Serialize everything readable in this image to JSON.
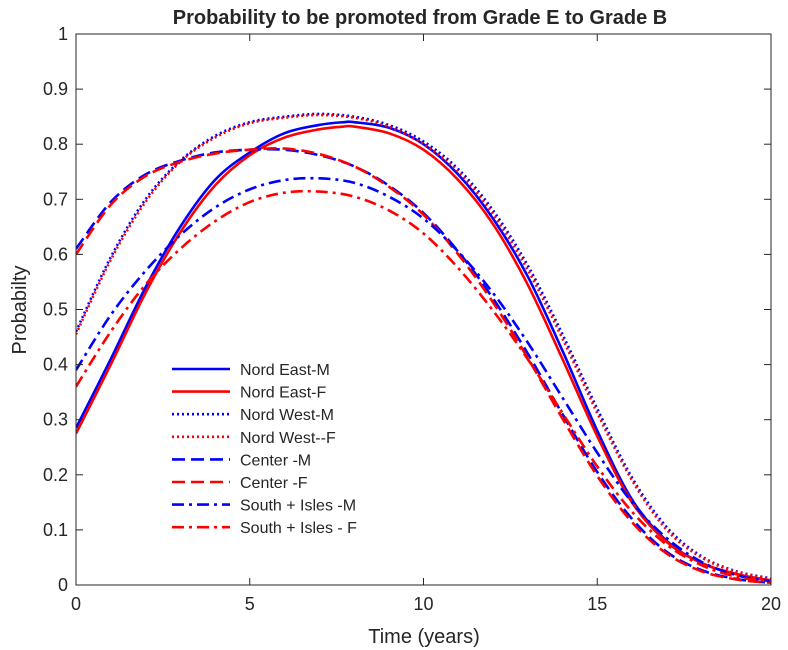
{
  "chart_data": {
    "type": "line",
    "title": "Probability to be promoted from Grade E to Grade B",
    "xlabel": "Time (years)",
    "ylabel": "Probabilty",
    "xlim": [
      0,
      20
    ],
    "ylim": [
      0,
      1
    ],
    "xticks": [
      0,
      5,
      10,
      15,
      20
    ],
    "yticks": [
      0,
      0.1,
      0.2,
      0.3,
      0.4,
      0.5,
      0.6,
      0.7,
      0.8,
      0.9,
      1
    ],
    "ytick_labels": [
      "0",
      "0.1",
      "0.2",
      "0.3",
      "0.4",
      "0.5",
      "0.6",
      "0.7",
      "0.8",
      "0.9",
      "1"
    ],
    "grid": false,
    "legend_position": "bottom-left",
    "series": [
      {
        "name": "Nord East-M",
        "color": "#0000ff",
        "style": "solid",
        "x": [
          0,
          1,
          2,
          3,
          4,
          5,
          6,
          7,
          7.7,
          8,
          9,
          10,
          11,
          12,
          13,
          14,
          15,
          16,
          17,
          18,
          19,
          20
        ],
        "y": [
          0.285,
          0.41,
          0.54,
          0.65,
          0.735,
          0.785,
          0.82,
          0.835,
          0.84,
          0.84,
          0.83,
          0.8,
          0.745,
          0.665,
          0.56,
          0.425,
          0.28,
          0.155,
          0.08,
          0.04,
          0.02,
          0.008
        ]
      },
      {
        "name": "Nord East-F",
        "color": "#ff0000",
        "style": "solid",
        "x": [
          0,
          1,
          2,
          3,
          4,
          5,
          6,
          7,
          7.7,
          8,
          9,
          10,
          11,
          12,
          13,
          14,
          15,
          16,
          17,
          18,
          19,
          20
        ],
        "y": [
          0.275,
          0.4,
          0.53,
          0.64,
          0.725,
          0.78,
          0.812,
          0.827,
          0.832,
          0.832,
          0.82,
          0.79,
          0.735,
          0.655,
          0.545,
          0.41,
          0.27,
          0.15,
          0.078,
          0.04,
          0.02,
          0.008
        ]
      },
      {
        "name": "Nord West-M",
        "color": "#0000ff",
        "style": "dotted",
        "x": [
          0,
          1,
          2,
          3,
          4,
          5,
          6,
          7,
          8,
          9,
          10,
          11,
          12,
          13,
          14,
          15,
          16,
          17,
          18,
          19,
          20
        ],
        "y": [
          0.46,
          0.595,
          0.7,
          0.77,
          0.815,
          0.84,
          0.85,
          0.855,
          0.85,
          0.835,
          0.805,
          0.755,
          0.68,
          0.58,
          0.455,
          0.32,
          0.195,
          0.105,
          0.052,
          0.025,
          0.012
        ]
      },
      {
        "name": "Nord West--F",
        "color": "#ff0000",
        "style": "dotted",
        "x": [
          0,
          1,
          2,
          3,
          4,
          5,
          6,
          7,
          8,
          9,
          10,
          11,
          12,
          13,
          14,
          15,
          16,
          17,
          18,
          19,
          20
        ],
        "y": [
          0.455,
          0.59,
          0.695,
          0.768,
          0.812,
          0.838,
          0.848,
          0.853,
          0.848,
          0.832,
          0.8,
          0.75,
          0.673,
          0.572,
          0.447,
          0.312,
          0.19,
          0.1,
          0.05,
          0.024,
          0.011
        ]
      },
      {
        "name": "Center -M",
        "color": "#0000ff",
        "style": "dashed",
        "x": [
          0,
          1,
          2,
          3,
          4,
          5,
          6,
          7,
          8,
          9,
          10,
          11,
          12,
          13,
          14,
          15,
          16,
          17,
          18,
          19,
          20
        ],
        "y": [
          0.61,
          0.695,
          0.745,
          0.77,
          0.785,
          0.79,
          0.79,
          0.78,
          0.76,
          0.725,
          0.675,
          0.605,
          0.52,
          0.42,
          0.31,
          0.205,
          0.12,
          0.06,
          0.027,
          0.011,
          0.004
        ]
      },
      {
        "name": "Center -F",
        "color": "#ff0000",
        "style": "dashed",
        "x": [
          0,
          1,
          2,
          3,
          4,
          5,
          6,
          7,
          8,
          9,
          10,
          11,
          12,
          13,
          14,
          15,
          16,
          17,
          18,
          19,
          20
        ],
        "y": [
          0.6,
          0.69,
          0.742,
          0.768,
          0.783,
          0.79,
          0.792,
          0.782,
          0.76,
          0.723,
          0.672,
          0.6,
          0.513,
          0.412,
          0.302,
          0.198,
          0.114,
          0.057,
          0.025,
          0.01,
          0.004
        ]
      },
      {
        "name": "South + Isles -M",
        "color": "#0000ff",
        "style": "dashdot",
        "x": [
          0,
          1,
          2,
          3,
          4,
          5,
          6,
          7,
          8,
          9,
          10,
          11,
          12,
          13,
          14,
          15,
          16,
          17,
          18,
          19,
          20
        ],
        "y": [
          0.39,
          0.49,
          0.57,
          0.635,
          0.685,
          0.718,
          0.735,
          0.738,
          0.73,
          0.705,
          0.665,
          0.605,
          0.53,
          0.44,
          0.34,
          0.24,
          0.15,
          0.085,
          0.042,
          0.018,
          0.007
        ]
      },
      {
        "name": "South + Isles - F",
        "color": "#ff0000",
        "style": "dashdot",
        "x": [
          0,
          1,
          2,
          3,
          4,
          5,
          6,
          7,
          8,
          9,
          10,
          11,
          12,
          13,
          14,
          15,
          16,
          17,
          18,
          19,
          20
        ],
        "y": [
          0.36,
          0.46,
          0.545,
          0.61,
          0.66,
          0.695,
          0.712,
          0.714,
          0.705,
          0.68,
          0.638,
          0.575,
          0.498,
          0.41,
          0.312,
          0.215,
          0.133,
          0.073,
          0.036,
          0.015,
          0.006
        ]
      }
    ]
  }
}
